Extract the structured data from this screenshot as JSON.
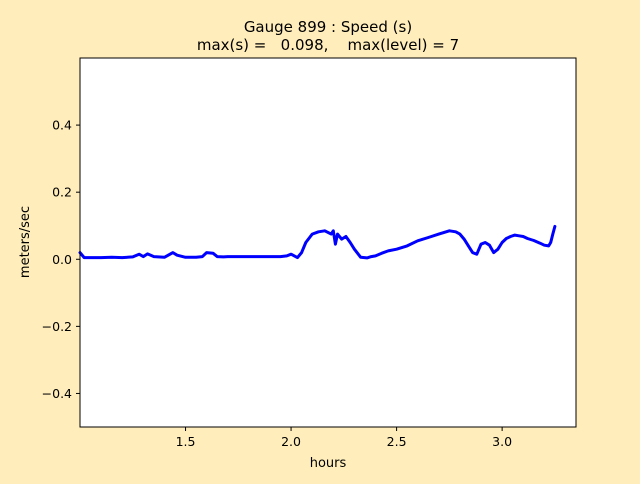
{
  "chart_data": {
    "type": "line",
    "title_line1": "Gauge 899 : Speed (s)",
    "title_line2": "max(s) =   0.098,    max(level) = 7",
    "xlabel": "hours",
    "ylabel": "meters/sec",
    "xlim": [
      1.0,
      3.35
    ],
    "ylim": [
      -0.5,
      0.6
    ],
    "xticks": [
      1.5,
      2.0,
      2.5,
      3.0
    ],
    "xtick_labels": [
      "1.5",
      "2.0",
      "2.5",
      "3.0"
    ],
    "yticks": [
      -0.4,
      -0.2,
      0.0,
      0.2,
      0.4
    ],
    "ytick_labels": [
      "−0.4",
      "−0.2",
      "0.0",
      "0.2",
      "0.4"
    ],
    "grid": false,
    "series": [
      {
        "color": "#0000ff",
        "x": [
          1.0,
          1.02,
          1.05,
          1.1,
          1.15,
          1.2,
          1.25,
          1.28,
          1.3,
          1.32,
          1.35,
          1.4,
          1.44,
          1.46,
          1.5,
          1.55,
          1.58,
          1.6,
          1.63,
          1.65,
          1.68,
          1.7,
          1.8,
          1.9,
          1.95,
          1.98,
          2.0,
          2.03,
          2.05,
          2.07,
          2.1,
          2.13,
          2.16,
          2.19,
          2.2,
          2.21,
          2.22,
          2.24,
          2.26,
          2.28,
          2.3,
          2.33,
          2.36,
          2.38,
          2.4,
          2.43,
          2.46,
          2.5,
          2.55,
          2.6,
          2.65,
          2.7,
          2.75,
          2.78,
          2.8,
          2.82,
          2.84,
          2.86,
          2.88,
          2.9,
          2.92,
          2.94,
          2.96,
          2.98,
          3.0,
          3.02,
          3.04,
          3.06,
          3.08,
          3.1,
          3.12,
          3.15,
          3.18,
          3.2,
          3.22,
          3.23,
          3.24,
          3.25
        ],
        "y": [
          0.02,
          0.005,
          0.005,
          0.005,
          0.006,
          0.005,
          0.007,
          0.015,
          0.008,
          0.016,
          0.008,
          0.006,
          0.02,
          0.012,
          0.006,
          0.006,
          0.008,
          0.02,
          0.018,
          0.008,
          0.007,
          0.008,
          0.008,
          0.008,
          0.008,
          0.01,
          0.015,
          0.005,
          0.02,
          0.05,
          0.075,
          0.082,
          0.085,
          0.075,
          0.085,
          0.045,
          0.075,
          0.06,
          0.068,
          0.05,
          0.03,
          0.006,
          0.004,
          0.008,
          0.01,
          0.018,
          0.025,
          0.03,
          0.04,
          0.055,
          0.065,
          0.075,
          0.085,
          0.082,
          0.075,
          0.06,
          0.04,
          0.02,
          0.015,
          0.045,
          0.05,
          0.042,
          0.02,
          0.03,
          0.05,
          0.062,
          0.068,
          0.072,
          0.07,
          0.068,
          0.062,
          0.056,
          0.048,
          0.042,
          0.04,
          0.05,
          0.075,
          0.098
        ]
      }
    ]
  }
}
